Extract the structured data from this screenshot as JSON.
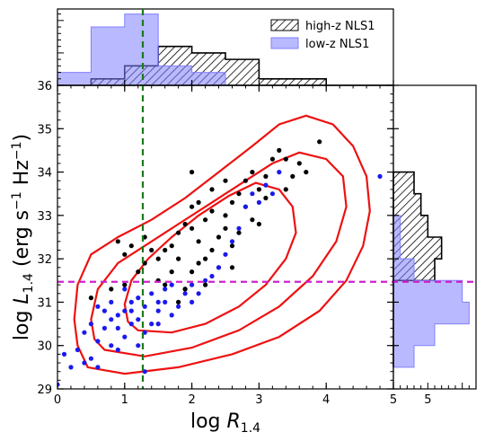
{
  "chart_data": {
    "type": "scatter",
    "xlabel": "log R_1.4",
    "ylabel": "log L_1.4 (erg s^-1 Hz^-1)",
    "xlim": [
      0,
      5
    ],
    "ylim": [
      29,
      36
    ],
    "xticks": [
      "0",
      "1",
      "2",
      "3",
      "4",
      "5"
    ],
    "yticks": [
      "29",
      "30",
      "31",
      "32",
      "33",
      "34",
      "35",
      "36"
    ],
    "legend": {
      "placement": "top-right",
      "entries": [
        {
          "label": "high-z NLS1",
          "style": "hatched",
          "color": "#000000"
        },
        {
          "label": "low-z NLS1",
          "style": "filled",
          "color": "#8080ff"
        }
      ]
    },
    "reference_lines": {
      "vertical_x": 1.27,
      "vertical_color": "#1a7a1a",
      "horizontal_y": 31.47,
      "horizontal_color": "#cc22cc"
    },
    "contour_color": "#ee1111",
    "contours": [
      [
        [
          0.45,
          29.5
        ],
        [
          1.0,
          29.35
        ],
        [
          1.8,
          29.5
        ],
        [
          2.6,
          29.8
        ],
        [
          3.3,
          30.2
        ],
        [
          3.9,
          30.8
        ],
        [
          4.3,
          31.5
        ],
        [
          4.55,
          32.3
        ],
        [
          4.65,
          33.1
        ],
        [
          4.6,
          33.9
        ],
        [
          4.4,
          34.6
        ],
        [
          4.1,
          35.1
        ],
        [
          3.7,
          35.3
        ],
        [
          3.3,
          35.1
        ],
        [
          2.9,
          34.6
        ],
        [
          2.4,
          34.0
        ],
        [
          1.9,
          33.4
        ],
        [
          1.4,
          32.9
        ],
        [
          0.9,
          32.5
        ],
        [
          0.5,
          32.1
        ],
        [
          0.3,
          31.4
        ],
        [
          0.25,
          30.6
        ],
        [
          0.3,
          30.0
        ],
        [
          0.45,
          29.5
        ]
      ],
      [
        [
          0.7,
          29.9
        ],
        [
          1.3,
          29.75
        ],
        [
          2.0,
          29.95
        ],
        [
          2.7,
          30.35
        ],
        [
          3.3,
          30.9
        ],
        [
          3.8,
          31.6
        ],
        [
          4.15,
          32.4
        ],
        [
          4.3,
          33.2
        ],
        [
          4.25,
          33.9
        ],
        [
          4.0,
          34.3
        ],
        [
          3.6,
          34.45
        ],
        [
          3.2,
          34.2
        ],
        [
          2.8,
          33.8
        ],
        [
          2.3,
          33.3
        ],
        [
          1.8,
          32.8
        ],
        [
          1.3,
          32.3
        ],
        [
          0.9,
          31.9
        ],
        [
          0.6,
          31.3
        ],
        [
          0.5,
          30.6
        ],
        [
          0.55,
          30.15
        ],
        [
          0.7,
          29.9
        ]
      ],
      [
        [
          1.2,
          30.35
        ],
        [
          1.7,
          30.3
        ],
        [
          2.2,
          30.5
        ],
        [
          2.7,
          30.9
        ],
        [
          3.1,
          31.4
        ],
        [
          3.4,
          32.0
        ],
        [
          3.55,
          32.6
        ],
        [
          3.5,
          33.2
        ],
        [
          3.3,
          33.6
        ],
        [
          2.95,
          33.75
        ],
        [
          2.55,
          33.45
        ],
        [
          2.1,
          33.0
        ],
        [
          1.7,
          32.5
        ],
        [
          1.35,
          32.0
        ],
        [
          1.1,
          31.5
        ],
        [
          1.0,
          30.95
        ],
        [
          1.05,
          30.55
        ],
        [
          1.2,
          30.35
        ]
      ]
    ],
    "series": [
      {
        "name": "high-z NLS1",
        "color": "#000000",
        "points": [
          [
            1.8,
            31.0
          ],
          [
            1.9,
            31.3
          ],
          [
            2.2,
            31.4
          ],
          [
            2.0,
            31.7
          ],
          [
            1.7,
            31.7
          ],
          [
            1.5,
            32.0
          ],
          [
            1.3,
            31.9
          ],
          [
            1.6,
            32.2
          ],
          [
            1.7,
            32.3
          ],
          [
            1.8,
            32.6
          ],
          [
            2.0,
            32.7
          ],
          [
            2.1,
            32.4
          ],
          [
            2.2,
            32.0
          ],
          [
            2.3,
            32.2
          ],
          [
            2.4,
            32.5
          ],
          [
            2.5,
            32.7
          ],
          [
            2.5,
            33.0
          ],
          [
            2.6,
            33.3
          ],
          [
            2.3,
            33.1
          ],
          [
            2.1,
            33.3
          ],
          [
            2.0,
            33.2
          ],
          [
            1.9,
            32.8
          ],
          [
            2.7,
            33.5
          ],
          [
            2.8,
            33.8
          ],
          [
            2.9,
            34.0
          ],
          [
            3.0,
            33.6
          ],
          [
            3.1,
            33.9
          ],
          [
            3.2,
            34.3
          ],
          [
            3.3,
            34.5
          ],
          [
            3.4,
            34.3
          ],
          [
            3.6,
            34.2
          ],
          [
            3.5,
            33.9
          ],
          [
            3.7,
            34.0
          ],
          [
            3.9,
            34.7
          ],
          [
            0.9,
            32.4
          ],
          [
            1.0,
            32.1
          ],
          [
            1.1,
            32.3
          ],
          [
            1.3,
            32.5
          ],
          [
            2.6,
            32.3
          ],
          [
            2.7,
            32.6
          ],
          [
            2.4,
            31.8
          ],
          [
            1.9,
            31.3
          ],
          [
            1.6,
            31.4
          ],
          [
            1.0,
            31.4
          ],
          [
            0.8,
            31.3
          ],
          [
            0.5,
            31.1
          ],
          [
            1.5,
            31.5
          ],
          [
            2.2,
            32.9
          ],
          [
            2.9,
            32.9
          ],
          [
            3.1,
            33.4
          ],
          [
            3.4,
            33.6
          ],
          [
            2.0,
            34.0
          ],
          [
            2.5,
            33.8
          ],
          [
            2.3,
            33.6
          ],
          [
            1.8,
            32.0
          ],
          [
            2.6,
            31.8
          ],
          [
            3.0,
            32.8
          ],
          [
            1.4,
            32.2
          ],
          [
            1.2,
            31.7
          ],
          [
            2.1,
            31.9
          ],
          [
            2.8,
            33.2
          ]
        ]
      },
      {
        "name": "low-z NLS1",
        "color": "#1a1aee",
        "points": [
          [
            0.0,
            29.1
          ],
          [
            0.1,
            29.8
          ],
          [
            0.3,
            29.9
          ],
          [
            0.4,
            29.6
          ],
          [
            0.5,
            29.7
          ],
          [
            0.6,
            29.5
          ],
          [
            0.4,
            30.3
          ],
          [
            0.5,
            30.5
          ],
          [
            0.6,
            30.1
          ],
          [
            0.7,
            30.4
          ],
          [
            0.8,
            30.0
          ],
          [
            0.9,
            29.9
          ],
          [
            1.0,
            30.2
          ],
          [
            1.1,
            30.5
          ],
          [
            1.2,
            30.0
          ],
          [
            0.7,
            30.8
          ],
          [
            0.8,
            31.0
          ],
          [
            0.9,
            30.7
          ],
          [
            1.0,
            30.8
          ],
          [
            1.1,
            31.0
          ],
          [
            1.2,
            30.6
          ],
          [
            1.3,
            30.9
          ],
          [
            1.4,
            30.5
          ],
          [
            1.5,
            30.8
          ],
          [
            1.6,
            31.0
          ],
          [
            1.7,
            30.7
          ],
          [
            1.8,
            30.9
          ],
          [
            1.2,
            31.1
          ],
          [
            1.4,
            31.2
          ],
          [
            1.5,
            31.0
          ],
          [
            1.6,
            31.3
          ],
          [
            1.0,
            31.3
          ],
          [
            0.6,
            30.9
          ],
          [
            1.9,
            31.2
          ],
          [
            2.0,
            31.4
          ],
          [
            2.1,
            31.2
          ],
          [
            2.2,
            31.5
          ],
          [
            2.3,
            31.6
          ],
          [
            2.4,
            31.8
          ],
          [
            2.5,
            32.1
          ],
          [
            2.6,
            32.4
          ],
          [
            2.7,
            32.7
          ],
          [
            2.8,
            33.2
          ],
          [
            2.9,
            33.5
          ],
          [
            3.0,
            33.3
          ],
          [
            3.1,
            33.7
          ],
          [
            3.2,
            33.5
          ],
          [
            3.3,
            34.0
          ],
          [
            4.8,
            33.9
          ],
          [
            1.3,
            29.4
          ],
          [
            0.9,
            30.4
          ],
          [
            1.7,
            31.4
          ],
          [
            1.3,
            30.3
          ],
          [
            0.8,
            30.6
          ],
          [
            1.1,
            30.8
          ],
          [
            1.5,
            30.5
          ],
          [
            2.0,
            31.0
          ],
          [
            0.2,
            29.5
          ]
        ]
      }
    ],
    "top_histogram": {
      "bins": [
        0.0,
        0.5,
        1.0,
        1.5,
        2.0,
        2.5,
        3.0,
        3.5,
        4.0,
        4.5,
        5.0
      ],
      "high_z_counts": [
        0,
        1,
        3,
        6,
        5,
        4,
        1,
        1,
        0,
        0
      ],
      "low_z_counts": [
        2,
        9,
        11,
        3,
        2,
        0,
        0,
        0,
        0,
        0
      ]
    },
    "right_histogram": {
      "bins": [
        29.5,
        30.0,
        30.5,
        31.0,
        31.5,
        32.0,
        32.5,
        33.0,
        33.5,
        34.0
      ],
      "high_z_counts": [
        0,
        0,
        0,
        0,
        6,
        7,
        5,
        4,
        3
      ],
      "low_z_counts": [
        3,
        6,
        11,
        10,
        3,
        1,
        1,
        0,
        0
      ],
      "xticks": [
        "5"
      ]
    }
  }
}
